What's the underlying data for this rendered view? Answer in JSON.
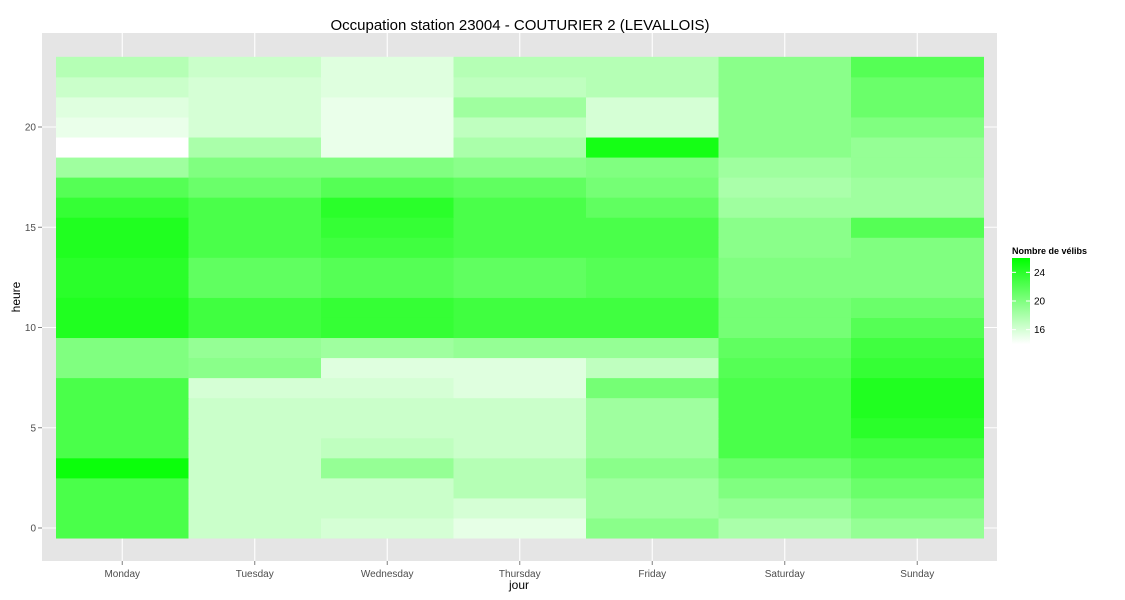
{
  "chart_data": {
    "type": "heatmap",
    "title": "Occupation station 23004 - COUTURIER 2 (LEVALLOIS)",
    "xlabel": "jour",
    "ylabel": "heure",
    "x_categories": [
      "Monday",
      "Tuesday",
      "Wednesday",
      "Thursday",
      "Friday",
      "Saturday",
      "Sunday"
    ],
    "y": [
      0,
      1,
      2,
      3,
      4,
      5,
      6,
      7,
      8,
      9,
      10,
      11,
      12,
      13,
      14,
      15,
      16,
      17,
      18,
      19,
      20,
      21,
      22,
      23
    ],
    "y_ticks": [
      0,
      5,
      10,
      15,
      20
    ],
    "ylim": [
      -0.5,
      23.5
    ],
    "grid": true,
    "legend": {
      "title": "Nombre de vélibs",
      "ticks": [
        16,
        20,
        24
      ],
      "range": [
        14,
        26
      ],
      "position": "right",
      "low_color": "#ffffff",
      "high_color": "#00ff00"
    },
    "values": [
      [
        22.5,
        16.5,
        16.0,
        15.2,
        19.5,
        18.0,
        19.0
      ],
      [
        22.5,
        16.5,
        16.5,
        16.0,
        18.5,
        19.0,
        20.0
      ],
      [
        22.5,
        16.5,
        16.5,
        17.5,
        18.5,
        20.0,
        21.0
      ],
      [
        25.5,
        16.5,
        19.0,
        17.5,
        19.5,
        21.0,
        22.0
      ],
      [
        22.5,
        16.5,
        17.0,
        16.5,
        18.5,
        22.5,
        23.0
      ],
      [
        22.5,
        16.5,
        16.5,
        16.5,
        18.5,
        22.5,
        24.0
      ],
      [
        22.5,
        16.5,
        16.5,
        16.5,
        18.5,
        22.5,
        24.5
      ],
      [
        22.5,
        16.0,
        16.0,
        15.5,
        20.5,
        22.5,
        24.5
      ],
      [
        20.0,
        19.5,
        15.5,
        15.5,
        17.0,
        22.0,
        23.5
      ],
      [
        20.0,
        19.0,
        18.5,
        19.0,
        19.0,
        21.5,
        23.0
      ],
      [
        24.5,
        23.0,
        23.5,
        23.0,
        23.0,
        20.5,
        22.0
      ],
      [
        24.5,
        23.0,
        23.5,
        23.0,
        23.0,
        20.5,
        21.0
      ],
      [
        24.0,
        21.5,
        22.0,
        21.5,
        22.0,
        20.0,
        20.0
      ],
      [
        24.0,
        21.5,
        22.0,
        21.5,
        22.0,
        20.0,
        20.0
      ],
      [
        24.5,
        22.5,
        23.0,
        22.5,
        22.5,
        19.5,
        20.0
      ],
      [
        24.5,
        22.5,
        23.5,
        22.5,
        22.5,
        19.5,
        22.0
      ],
      [
        23.5,
        22.5,
        24.0,
        22.5,
        21.5,
        18.5,
        18.5
      ],
      [
        22.0,
        21.0,
        22.0,
        21.5,
        20.5,
        18.0,
        18.5
      ],
      [
        18.5,
        20.0,
        20.0,
        19.5,
        20.0,
        18.5,
        19.0
      ],
      [
        14.0,
        18.0,
        15.0,
        18.0,
        25.0,
        19.5,
        19.0
      ],
      [
        15.0,
        16.0,
        15.0,
        17.0,
        16.0,
        19.5,
        20.0
      ],
      [
        15.5,
        16.0,
        15.0,
        18.5,
        16.0,
        19.5,
        21.0
      ],
      [
        16.5,
        16.0,
        15.5,
        17.0,
        17.5,
        19.5,
        21.0
      ],
      [
        17.5,
        16.5,
        15.5,
        17.5,
        17.5,
        19.5,
        22.0
      ]
    ]
  }
}
